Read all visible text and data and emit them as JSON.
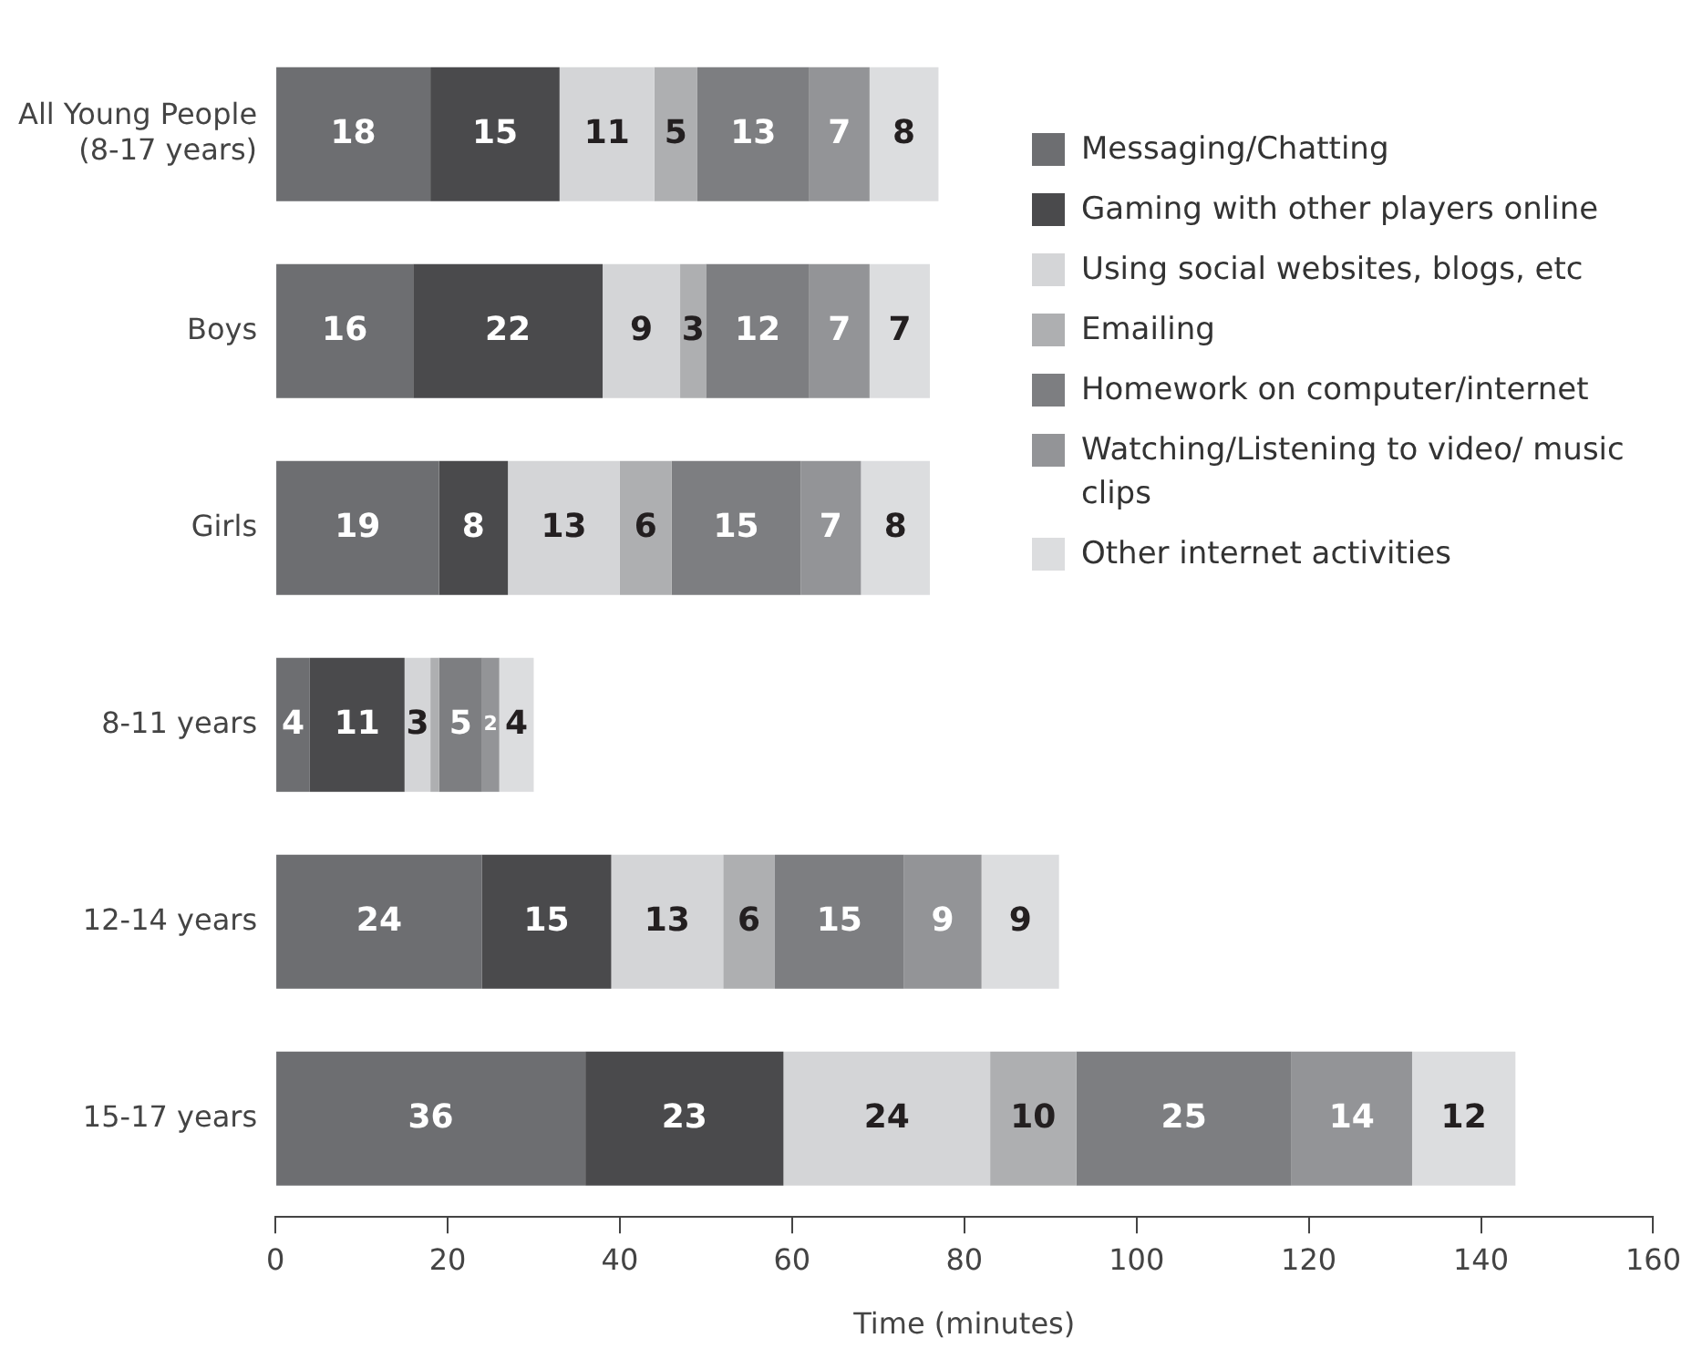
{
  "chart_data": {
    "type": "bar",
    "orientation": "horizontal",
    "stacked": true,
    "xlabel": "Time (minutes)",
    "categories": [
      "All Young People\n(8-17 years)",
      "Boys",
      "Girls",
      "8-11 years",
      "12-14 years",
      "15-17 years"
    ],
    "xlim": [
      0,
      160
    ],
    "xticks": [
      0,
      20,
      40,
      60,
      80,
      100,
      120,
      140,
      160
    ],
    "grid": false,
    "legend": "top right",
    "series": [
      {
        "name": "Messaging/Chatting",
        "color": "#6d6e71",
        "values": [
          18,
          16,
          19,
          4,
          24,
          36
        ],
        "value_labels": [
          "18",
          "16",
          "19",
          "4",
          "24",
          "36"
        ]
      },
      {
        "name": "Gaming with other players online",
        "color": "#4a4a4c",
        "values": [
          15,
          22,
          8,
          11,
          15,
          23
        ],
        "value_labels": [
          "15",
          "22",
          "8",
          "11",
          "15",
          "23"
        ]
      },
      {
        "name": "Using social websites, blogs, etc",
        "color": "#d4d5d7",
        "values": [
          11,
          9,
          13,
          3,
          13,
          24
        ],
        "value_labels": [
          "11",
          "9",
          "13",
          "3",
          "13",
          "24"
        ]
      },
      {
        "name": "Emailing",
        "color": "#aeafb1",
        "values": [
          5,
          3,
          6,
          1,
          6,
          10
        ],
        "value_labels": [
          "5",
          "3",
          "6",
          null,
          "6",
          "10"
        ]
      },
      {
        "name": "Homework on computer/internet",
        "color": "#7d7e81",
        "values": [
          13,
          12,
          15,
          5,
          15,
          25
        ],
        "value_labels": [
          "13",
          "12",
          "15",
          "5",
          "15",
          "25"
        ]
      },
      {
        "name": "Watching/Listening to video/ music clips",
        "color": "#939497",
        "values": [
          7,
          7,
          7,
          2,
          9,
          14
        ],
        "value_labels": [
          "7",
          "7",
          "7",
          "2",
          "9",
          "14"
        ]
      },
      {
        "name": "Other internet activities",
        "color": "#dcdddf",
        "values": [
          8,
          7,
          8,
          4,
          9,
          12
        ],
        "value_labels": [
          "8",
          "7",
          "8",
          "4",
          "9",
          "12"
        ]
      }
    ]
  }
}
